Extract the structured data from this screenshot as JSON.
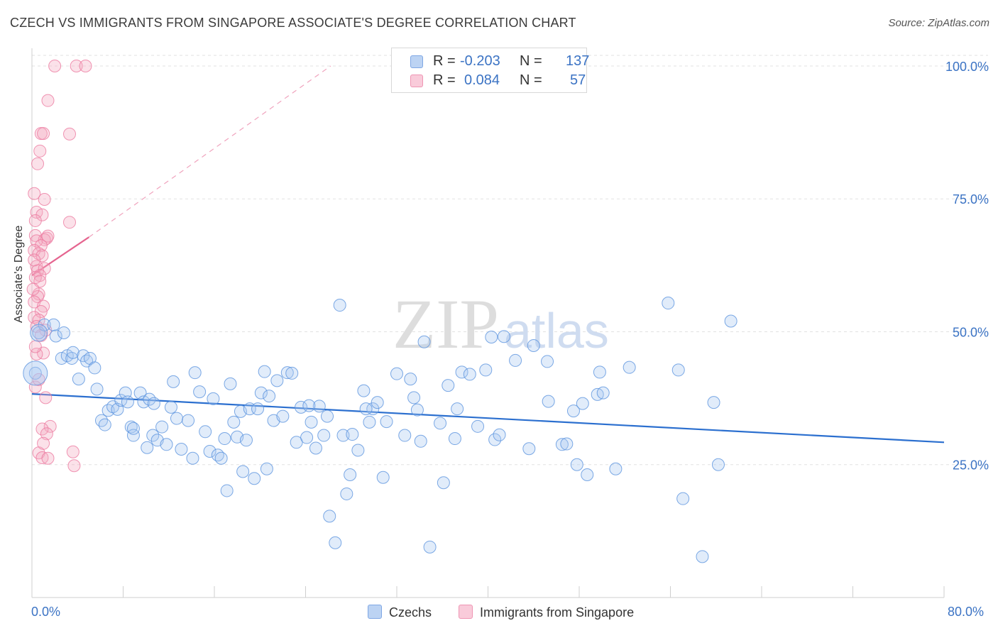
{
  "title": "CZECH VS IMMIGRANTS FROM SINGAPORE ASSOCIATE'S DEGREE CORRELATION CHART",
  "source": "Source: ZipAtlas.com",
  "watermark": {
    "zip": "ZIP",
    "atlas": "atlas"
  },
  "legend": {
    "rows": [
      {
        "r_label": "R =",
        "r_value": "-0.203",
        "n_label": "N =",
        "n_value": "137",
        "color": "#9dc0ef"
      },
      {
        "r_label": "R =",
        "r_value": "0.084",
        "n_label": "N =",
        "n_value": "57",
        "color": "#f7b3c8"
      }
    ]
  },
  "bottom_legend": {
    "czechs": "Czechs",
    "singapore": "Immigrants from Singapore"
  },
  "x_ticks": {
    "min": "0.0%",
    "max": "80.0%"
  },
  "chart_data": {
    "type": "scatter",
    "ylabel": "Associate's Degree",
    "xlim": [
      0,
      80
    ],
    "ylim": [
      0,
      102
    ],
    "y_ticks": [
      {
        "value": 25,
        "label": "25.0%"
      },
      {
        "value": 50,
        "label": "50.0%"
      },
      {
        "value": 75,
        "label": "75.0%"
      },
      {
        "value": 100,
        "label": "100.0%"
      }
    ],
    "grid": true,
    "legend_position": "top-center",
    "colors": {
      "czechs": "#5b93df",
      "singapore": "#ec7aa0",
      "czech_trend": "#2b6fcf",
      "singapore_trend": "#e5648f"
    },
    "series": [
      {
        "name": "Czechs",
        "trend": {
          "x": [
            0,
            80
          ],
          "y": [
            38.3,
            29.2
          ]
        },
        "points": [
          [
            0.3,
            42.2
          ],
          [
            0.6,
            49.8
          ],
          [
            1.1,
            51.3
          ],
          [
            1.9,
            51.3
          ],
          [
            2.1,
            49.2
          ],
          [
            2.8,
            49.8
          ],
          [
            2.6,
            45.0
          ],
          [
            3.1,
            45.5
          ],
          [
            3.5,
            45.0
          ],
          [
            3.6,
            46.1
          ],
          [
            4.5,
            45.5
          ],
          [
            4.8,
            44.5
          ],
          [
            5.1,
            45.0
          ],
          [
            5.5,
            43.2
          ],
          [
            4.1,
            41.1
          ],
          [
            5.7,
            39.2
          ],
          [
            6.1,
            33.3
          ],
          [
            6.4,
            32.5
          ],
          [
            6.7,
            35.2
          ],
          [
            7.1,
            35.9
          ],
          [
            7.5,
            35.4
          ],
          [
            7.8,
            37.1
          ],
          [
            8.2,
            38.5
          ],
          [
            8.4,
            36.8
          ],
          [
            8.7,
            32.1
          ],
          [
            8.9,
            30.5
          ],
          [
            9.5,
            38.5
          ],
          [
            9.8,
            36.8
          ],
          [
            10.1,
            28.2
          ],
          [
            10.3,
            37.3
          ],
          [
            10.6,
            30.5
          ],
          [
            11.0,
            29.6
          ],
          [
            11.4,
            32.1
          ],
          [
            11.8,
            28.8
          ],
          [
            12.2,
            35.8
          ],
          [
            12.4,
            40.6
          ],
          [
            12.7,
            33.7
          ],
          [
            13.1,
            27.9
          ],
          [
            13.7,
            33.3
          ],
          [
            14.1,
            26.2
          ],
          [
            14.3,
            42.3
          ],
          [
            14.7,
            38.7
          ],
          [
            15.2,
            31.2
          ],
          [
            15.6,
            27.5
          ],
          [
            15.9,
            37.4
          ],
          [
            16.3,
            26.8
          ],
          [
            16.6,
            26.2
          ],
          [
            16.9,
            29.9
          ],
          [
            17.1,
            20.1
          ],
          [
            17.4,
            40.2
          ],
          [
            17.7,
            33.0
          ],
          [
            18.0,
            30.2
          ],
          [
            18.3,
            35.0
          ],
          [
            18.5,
            23.7
          ],
          [
            18.8,
            29.6
          ],
          [
            19.1,
            35.5
          ],
          [
            19.5,
            22.4
          ],
          [
            19.8,
            35.5
          ],
          [
            20.1,
            38.5
          ],
          [
            20.4,
            42.5
          ],
          [
            20.6,
            24.2
          ],
          [
            20.8,
            37.9
          ],
          [
            21.2,
            33.3
          ],
          [
            21.5,
            40.8
          ],
          [
            22.0,
            34.1
          ],
          [
            22.4,
            42.3
          ],
          [
            22.8,
            42.2
          ],
          [
            23.2,
            29.2
          ],
          [
            23.6,
            35.8
          ],
          [
            24.1,
            30.1
          ],
          [
            24.5,
            33.0
          ],
          [
            24.9,
            28.1
          ],
          [
            25.2,
            36.0
          ],
          [
            25.6,
            30.5
          ],
          [
            25.9,
            34.1
          ],
          [
            8.9,
            31.8
          ],
          [
            27.0,
            55.0
          ],
          [
            27.3,
            30.5
          ],
          [
            27.6,
            19.5
          ],
          [
            27.9,
            23.1
          ],
          [
            28.1,
            30.7
          ],
          [
            28.6,
            27.7
          ],
          [
            29.1,
            38.9
          ],
          [
            29.6,
            33.0
          ],
          [
            29.9,
            35.5
          ],
          [
            30.3,
            36.7
          ],
          [
            30.8,
            22.6
          ],
          [
            31.1,
            33.1
          ],
          [
            32.0,
            42.1
          ],
          [
            32.7,
            30.5
          ],
          [
            33.2,
            41.1
          ],
          [
            33.5,
            37.6
          ],
          [
            33.8,
            35.3
          ],
          [
            34.1,
            29.4
          ],
          [
            34.4,
            48.1
          ],
          [
            34.9,
            9.5
          ],
          [
            35.8,
            32.8
          ],
          [
            36.1,
            21.6
          ],
          [
            36.5,
            39.9
          ],
          [
            37.1,
            29.9
          ],
          [
            37.3,
            35.5
          ],
          [
            37.7,
            42.4
          ],
          [
            38.4,
            42.0
          ],
          [
            39.1,
            32.2
          ],
          [
            39.8,
            42.8
          ],
          [
            40.3,
            49.0
          ],
          [
            40.6,
            29.7
          ],
          [
            41.0,
            30.6
          ],
          [
            41.4,
            49.1
          ],
          [
            42.4,
            44.6
          ],
          [
            43.6,
            28.0
          ],
          [
            44.0,
            47.4
          ],
          [
            45.2,
            44.4
          ],
          [
            45.3,
            36.9
          ],
          [
            46.5,
            28.8
          ],
          [
            46.9,
            28.9
          ],
          [
            47.5,
            35.1
          ],
          [
            47.8,
            25.0
          ],
          [
            48.3,
            36.5
          ],
          [
            48.7,
            23.1
          ],
          [
            49.6,
            38.2
          ],
          [
            49.8,
            42.4
          ],
          [
            50.1,
            38.5
          ],
          [
            51.2,
            24.2
          ],
          [
            52.4,
            43.3
          ],
          [
            55.8,
            55.4
          ],
          [
            56.7,
            42.8
          ],
          [
            57.1,
            18.6
          ],
          [
            58.8,
            7.7
          ],
          [
            59.8,
            36.7
          ],
          [
            60.2,
            25.0
          ],
          [
            61.3,
            52.0
          ],
          [
            24.3,
            36.1
          ],
          [
            26.1,
            15.3
          ],
          [
            26.6,
            10.3
          ],
          [
            29.3,
            35.5
          ],
          [
            10.7,
            36.5
          ]
        ]
      },
      {
        "name": "Immigrants from Singapore",
        "trend": {
          "x": [
            0,
            5
          ],
          "y": [
            60.6,
            67.8
          ]
        },
        "trend_ext": {
          "x": [
            5,
            26.2
          ],
          "y": [
            67.8,
            100
          ]
        },
        "points": [
          [
            2.0,
            100.0
          ],
          [
            3.9,
            100.0
          ],
          [
            4.7,
            100.0
          ],
          [
            1.4,
            93.5
          ],
          [
            0.8,
            87.3
          ],
          [
            1.0,
            87.3
          ],
          [
            3.3,
            87.2
          ],
          [
            0.7,
            84.0
          ],
          [
            0.5,
            81.6
          ],
          [
            0.2,
            76.0
          ],
          [
            1.1,
            74.9
          ],
          [
            0.4,
            72.5
          ],
          [
            0.9,
            72.0
          ],
          [
            0.3,
            70.9
          ],
          [
            3.3,
            70.6
          ],
          [
            0.3,
            68.1
          ],
          [
            1.3,
            67.6
          ],
          [
            1.1,
            67.3
          ],
          [
            0.4,
            67.1
          ],
          [
            0.8,
            66.2
          ],
          [
            0.2,
            65.3
          ],
          [
            0.6,
            64.7
          ],
          [
            0.9,
            64.3
          ],
          [
            0.4,
            62.3
          ],
          [
            0.5,
            61.5
          ],
          [
            1.1,
            61.9
          ],
          [
            0.7,
            60.6
          ],
          [
            0.3,
            60.2
          ],
          [
            0.6,
            57.1
          ],
          [
            0.5,
            56.6
          ],
          [
            0.2,
            55.6
          ],
          [
            1.0,
            54.8
          ],
          [
            0.8,
            53.8
          ],
          [
            0.2,
            52.7
          ],
          [
            0.6,
            52.2
          ],
          [
            0.4,
            51.0
          ],
          [
            1.2,
            50.3
          ],
          [
            0.8,
            49.3
          ],
          [
            1.0,
            46.0
          ],
          [
            0.4,
            45.8
          ],
          [
            0.3,
            39.6
          ],
          [
            1.2,
            37.6
          ],
          [
            1.6,
            32.2
          ],
          [
            0.9,
            31.7
          ],
          [
            1.3,
            30.8
          ],
          [
            0.6,
            27.2
          ],
          [
            3.6,
            27.4
          ],
          [
            0.9,
            26.3
          ],
          [
            1.4,
            26.2
          ],
          [
            3.7,
            24.8
          ],
          [
            0.2,
            63.5
          ],
          [
            0.7,
            59.5
          ],
          [
            1.4,
            68.0
          ],
          [
            0.1,
            58.0
          ],
          [
            0.3,
            47.2
          ],
          [
            0.6,
            41.0
          ],
          [
            1.0,
            29.0
          ]
        ]
      }
    ]
  }
}
